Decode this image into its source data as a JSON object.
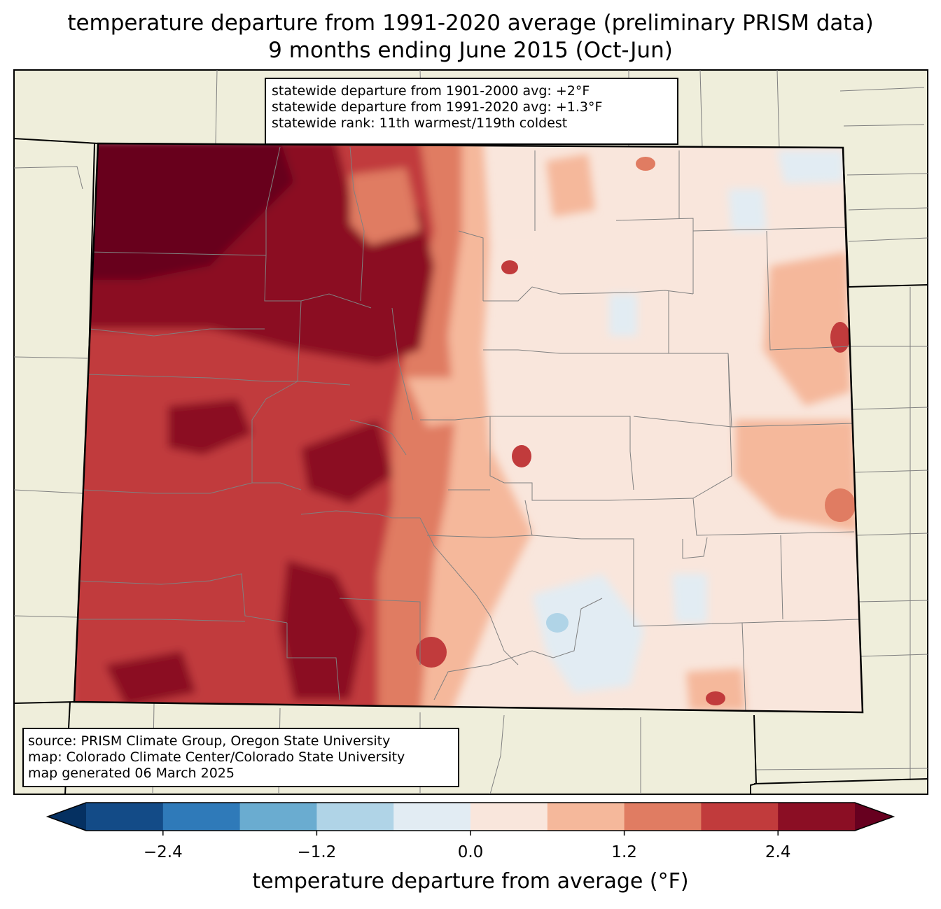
{
  "title": {
    "line1": "temperature departure from 1991-2020 average (preliminary PRISM data)",
    "line2": "9 months ending June 2015 (Oct-Jun)"
  },
  "stats_box": {
    "line1": "statewide departure from 1901-2000 avg: +2°F",
    "line2": "statewide departure from 1991-2020 avg: +1.3°F",
    "line3": "statewide rank: 11th warmest/119th coldest"
  },
  "source_box": {
    "line1": "source: PRISM Climate Group, Oregon State University",
    "line2": "map: Colorado Climate Center/Colorado State University",
    "line3": "map generated 06 March 2025"
  },
  "colorbar": {
    "label": "temperature departure from average (°F)",
    "ticks": [
      "−2.4",
      "−1.2",
      "0.0",
      "1.2",
      "2.4"
    ],
    "tick_values": [
      -2.4,
      -1.2,
      0.0,
      1.2,
      2.4
    ],
    "bounds": [
      -3.0,
      -2.4,
      -1.8,
      -1.2,
      -0.6,
      0.0,
      0.6,
      1.2,
      1.8,
      2.4,
      3.0
    ],
    "colors": [
      "#134b87",
      "#2f7ab9",
      "#6aacd0",
      "#b0d4e7",
      "#e2ecf3",
      "#f9e6dc",
      "#f5b89b",
      "#e07c62",
      "#c13b3c",
      "#8b0e24"
    ],
    "under_color": "#053061",
    "over_color": "#67001f"
  },
  "colors": {
    "land": "#efeedb",
    "state_border": "#000000",
    "county_line": "#808080"
  }
}
